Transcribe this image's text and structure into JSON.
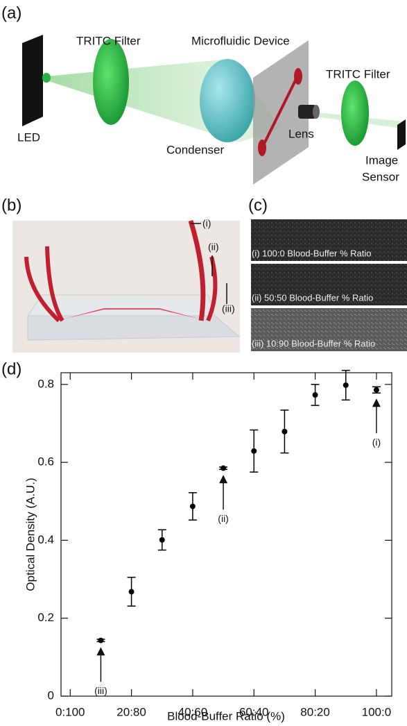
{
  "panel_a": {
    "label": "(a)",
    "filter_1": "TRITC Filter",
    "device": "Microfluidic Device",
    "filter_2": "TRITC Filter",
    "led": "LED",
    "condenser": "Condenser",
    "lens": "Lens",
    "sensor_line_1": "Image",
    "sensor_line_2": "Sensor"
  },
  "panel_b": {
    "label": "(b)",
    "markers": [
      "(i)",
      "(ii)",
      "(iii)"
    ]
  },
  "panel_c": {
    "label": "(c)",
    "captions": [
      "(i) 100:0 Blood-Buffer % Ratio",
      "(ii) 50:50 Blood-Buffer % Ratio",
      "(iii) 10:90 Blood-Buffer % Ratio"
    ]
  },
  "chart_data": {
    "type": "scatter",
    "panel_label": "(d)",
    "x_label": "Blood-Buffer Ratio (%)",
    "y_label": "Optical Density (A.U.)",
    "series": [
      {
        "color": "#000000",
        "x": [
          10,
          20,
          30,
          40,
          50,
          60,
          70,
          80,
          90,
          100
        ],
        "values": [
          0.143,
          0.268,
          0.401,
          0.487,
          0.585,
          0.629,
          0.679,
          0.773,
          0.798,
          0.786
        ],
        "errors": [
          0.003,
          0.037,
          0.026,
          0.035,
          0.003,
          0.054,
          0.055,
          0.027,
          0.038,
          0.008
        ]
      }
    ],
    "annotations": [
      "(iii)",
      "(ii)",
      "(i)"
    ],
    "xlim": [
      -3,
      105
    ],
    "xticks": [
      {
        "value": 0,
        "label": "0:100"
      },
      {
        "value": 20,
        "label": "20:80"
      },
      {
        "value": 40,
        "label": "40:60"
      },
      {
        "value": 60,
        "label": "60:40"
      },
      {
        "value": 80,
        "label": "80:20"
      },
      {
        "value": 100,
        "label": "100:0"
      }
    ],
    "ylim": [
      0,
      0.83
    ],
    "yticks": [
      0,
      0.2,
      0.4,
      0.6,
      0.8
    ]
  }
}
